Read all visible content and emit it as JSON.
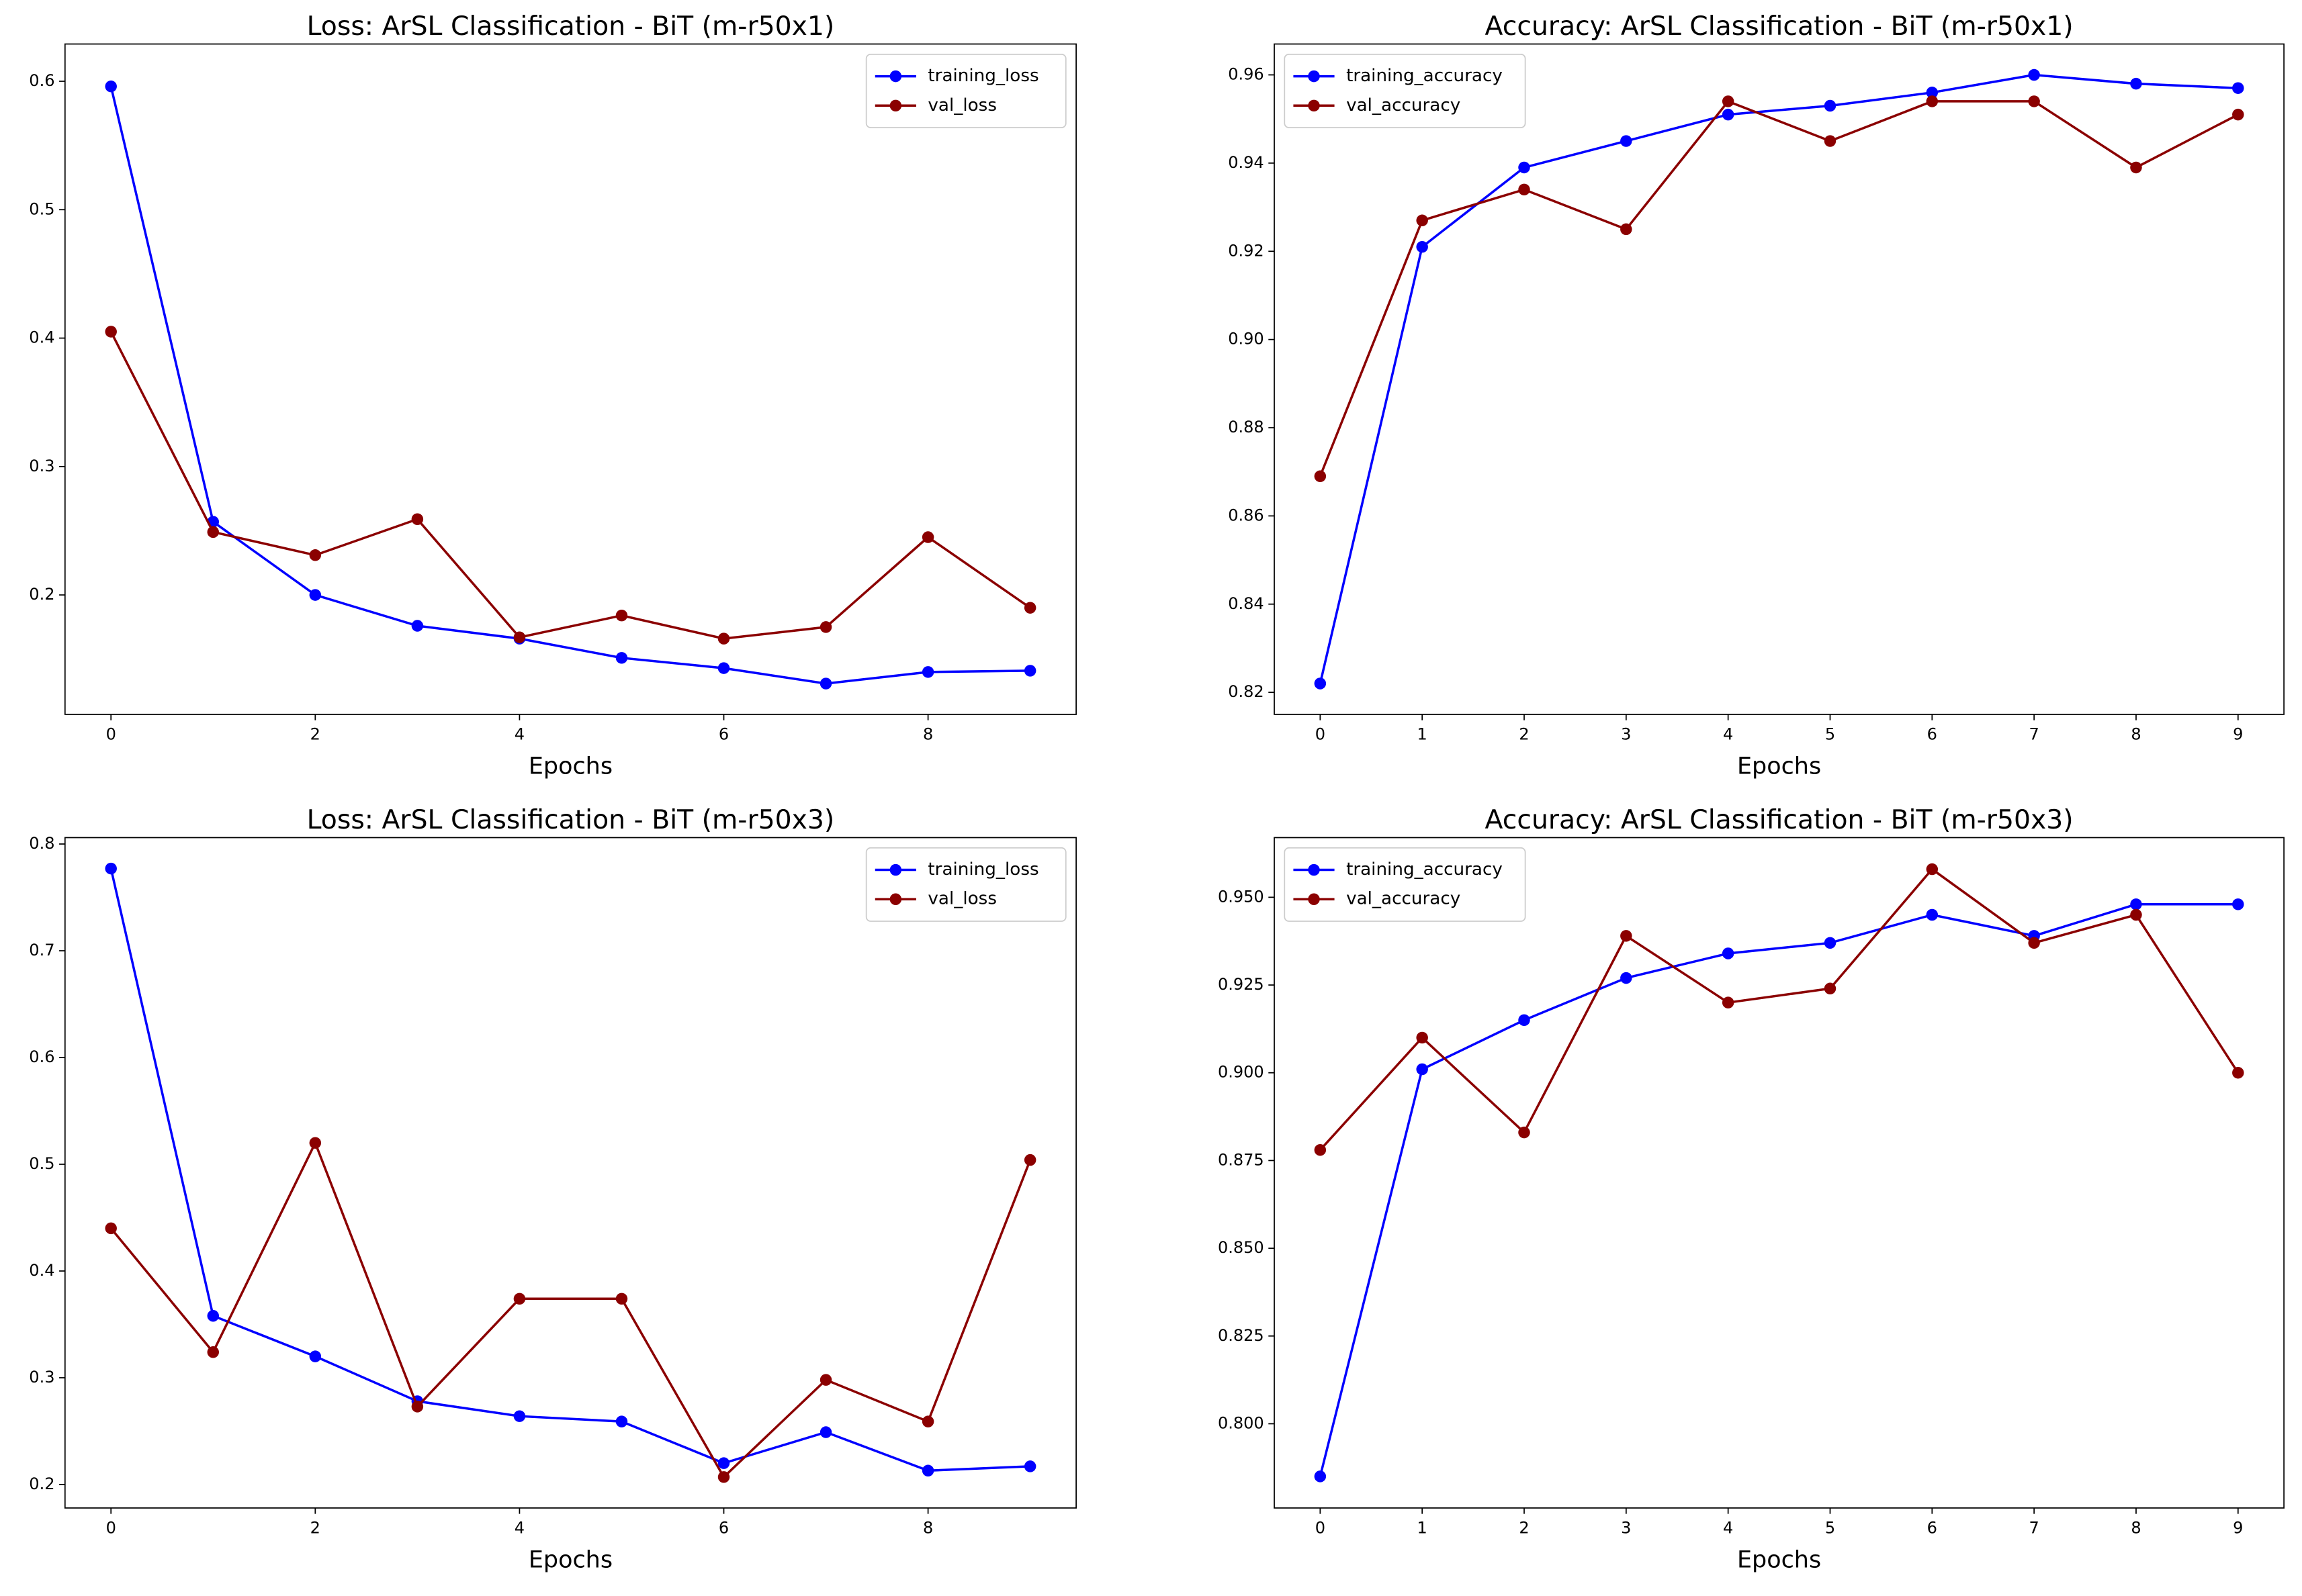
{
  "chart_data": [
    {
      "type": "line",
      "title": "Loss: ArSL Classification - BiT (m-r50x1)",
      "xlabel": "Epochs",
      "x": [
        0,
        1,
        2,
        3,
        4,
        5,
        6,
        7,
        8,
        9
      ],
      "xlim": [
        -0.45,
        9.45
      ],
      "xticks": [
        0,
        2,
        4,
        6,
        8
      ],
      "ylim": [
        0.107,
        0.629
      ],
      "yticks": [
        0.2,
        0.3,
        0.4,
        0.5,
        0.6
      ],
      "legend": "upper right",
      "series": [
        {
          "name": "training_loss",
          "color": "#0000ff",
          "values": [
            0.596,
            0.257,
            0.2,
            0.176,
            0.166,
            0.151,
            0.143,
            0.131,
            0.14,
            0.141
          ]
        },
        {
          "name": "val_loss",
          "color": "#8b0000",
          "values": [
            0.405,
            0.249,
            0.231,
            0.259,
            0.167,
            0.184,
            0.166,
            0.175,
            0.245,
            0.19
          ]
        }
      ]
    },
    {
      "type": "line",
      "title": "Accuracy: ArSL Classification - BiT (m-r50x1)",
      "xlabel": "Epochs",
      "x": [
        0,
        1,
        2,
        3,
        4,
        5,
        6,
        7,
        8,
        9
      ],
      "xlim": [
        -0.45,
        9.45
      ],
      "xticks": [
        0,
        1,
        2,
        3,
        4,
        5,
        6,
        7,
        8,
        9
      ],
      "ylim": [
        0.815,
        0.967
      ],
      "yticks": [
        0.82,
        0.84,
        0.86,
        0.88,
        {
          "value": 0.9,
          "label": "0.90"
        },
        0.92,
        0.94,
        0.96
      ],
      "legend": "upper left",
      "series": [
        {
          "name": "training_accuracy",
          "color": "#0000ff",
          "values": [
            0.822,
            0.921,
            0.939,
            0.945,
            0.951,
            0.953,
            0.956,
            0.96,
            0.958,
            0.957
          ]
        },
        {
          "name": "val_accuracy",
          "color": "#8b0000",
          "values": [
            0.869,
            0.927,
            0.934,
            0.925,
            0.954,
            0.945,
            0.954,
            0.954,
            0.939,
            0.951
          ]
        }
      ]
    },
    {
      "type": "line",
      "title": "Loss: ArSL Classification - BiT (m-r50x3)",
      "xlabel": "Epochs",
      "x": [
        0,
        1,
        2,
        3,
        4,
        5,
        6,
        7,
        8,
        9
      ],
      "xlim": [
        -0.45,
        9.45
      ],
      "xticks": [
        0,
        2,
        4,
        6,
        8
      ],
      "ylim": [
        0.178,
        0.806
      ],
      "yticks": [
        0.2,
        0.3,
        0.4,
        0.5,
        0.6,
        0.7,
        0.8
      ],
      "legend": "upper right",
      "series": [
        {
          "name": "training_loss",
          "color": "#0000ff",
          "values": [
            0.777,
            0.358,
            0.32,
            0.278,
            0.264,
            0.259,
            0.22,
            0.249,
            0.213,
            0.217
          ]
        },
        {
          "name": "val_loss",
          "color": "#8b0000",
          "values": [
            0.44,
            0.324,
            0.52,
            0.273,
            0.374,
            0.374,
            0.207,
            0.298,
            0.259,
            0.504
          ]
        }
      ]
    },
    {
      "type": "line",
      "title": "Accuracy: ArSL Classification - BiT (m-r50x3)",
      "xlabel": "Epochs",
      "x": [
        0,
        1,
        2,
        3,
        4,
        5,
        6,
        7,
        8,
        9
      ],
      "xlim": [
        -0.45,
        9.45
      ],
      "xticks": [
        0,
        1,
        2,
        3,
        4,
        5,
        6,
        7,
        8,
        9
      ],
      "ylim": [
        0.776,
        0.967
      ],
      "yticks": [
        {
          "value": 0.8,
          "label": "0.800"
        },
        0.825,
        {
          "value": 0.85,
          "label": "0.850"
        },
        0.875,
        {
          "value": 0.9,
          "label": "0.900"
        },
        0.925,
        {
          "value": 0.95,
          "label": "0.950"
        }
      ],
      "legend": "upper left",
      "series": [
        {
          "name": "training_accuracy",
          "color": "#0000ff",
          "values": [
            0.785,
            0.901,
            0.915,
            0.927,
            0.934,
            0.937,
            0.945,
            0.939,
            0.948,
            0.948
          ]
        },
        {
          "name": "val_accuracy",
          "color": "#8b0000",
          "values": [
            0.878,
            0.91,
            0.883,
            0.939,
            0.92,
            0.924,
            0.958,
            0.937,
            0.945,
            0.9
          ]
        }
      ]
    }
  ]
}
